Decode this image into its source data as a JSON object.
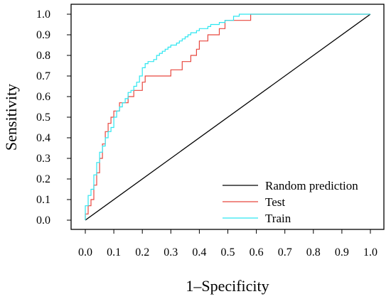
{
  "chart_data": {
    "type": "line",
    "title": "",
    "xlabel": "1–Specificity",
    "ylabel": "Sensitivity",
    "xlim": [
      0,
      1
    ],
    "ylim": [
      0,
      1
    ],
    "xticks": [
      "0.0",
      "0.1",
      "0.2",
      "0.3",
      "0.4",
      "0.5",
      "0.6",
      "0.7",
      "0.8",
      "0.9",
      "1.0"
    ],
    "yticks": [
      "0.0",
      "0.1",
      "0.2",
      "0.3",
      "0.4",
      "0.5",
      "0.6",
      "0.7",
      "0.8",
      "0.9",
      "1.0"
    ],
    "grid": false,
    "legend_position": "bottom-right",
    "series": [
      {
        "name": "Random prediction",
        "color": "#000000",
        "x": [
          0,
          1
        ],
        "y": [
          0,
          1
        ]
      },
      {
        "name": "Test",
        "color": "#e8473f",
        "x": [
          0.0,
          0.0,
          0.01,
          0.01,
          0.02,
          0.03,
          0.04,
          0.05,
          0.06,
          0.07,
          0.08,
          0.09,
          0.1,
          0.1,
          0.12,
          0.12,
          0.13,
          0.14,
          0.15,
          0.16,
          0.17,
          0.18,
          0.19,
          0.2,
          0.21,
          0.22,
          0.23,
          0.24,
          0.25,
          0.26,
          0.27,
          0.28,
          0.29,
          0.3,
          0.3,
          0.31,
          0.32,
          0.33,
          0.34,
          0.35,
          0.36,
          0.37,
          0.38,
          0.39,
          0.4,
          0.41,
          0.42,
          0.43,
          0.44,
          0.45,
          0.46,
          0.47,
          0.48,
          0.49,
          0.5,
          0.52,
          0.54,
          0.56,
          0.58,
          0.6,
          0.62,
          0.64,
          0.66,
          0.68,
          1.0
        ],
        "y": [
          0.0,
          0.03,
          0.03,
          0.07,
          0.1,
          0.17,
          0.23,
          0.3,
          0.37,
          0.43,
          0.47,
          0.5,
          0.53,
          0.53,
          0.53,
          0.57,
          0.57,
          0.57,
          0.6,
          0.6,
          0.63,
          0.63,
          0.63,
          0.67,
          0.7,
          0.7,
          0.7,
          0.7,
          0.7,
          0.7,
          0.7,
          0.7,
          0.7,
          0.7,
          0.73,
          0.73,
          0.73,
          0.73,
          0.77,
          0.77,
          0.77,
          0.8,
          0.8,
          0.83,
          0.87,
          0.87,
          0.87,
          0.9,
          0.9,
          0.9,
          0.9,
          0.93,
          0.93,
          0.97,
          0.97,
          0.97,
          0.97,
          0.97,
          1.0,
          1.0,
          1.0,
          1.0,
          1.0,
          1.0,
          1.0
        ]
      },
      {
        "name": "Train",
        "color": "#2ee6f0",
        "x": [
          0.0,
          0.0,
          0.01,
          0.02,
          0.03,
          0.04,
          0.05,
          0.06,
          0.07,
          0.08,
          0.09,
          0.1,
          0.11,
          0.12,
          0.13,
          0.14,
          0.15,
          0.16,
          0.17,
          0.18,
          0.19,
          0.2,
          0.21,
          0.22,
          0.23,
          0.24,
          0.25,
          0.26,
          0.27,
          0.28,
          0.29,
          0.3,
          0.31,
          0.32,
          0.33,
          0.34,
          0.35,
          0.36,
          0.37,
          0.38,
          0.39,
          0.4,
          0.41,
          0.42,
          0.43,
          0.44,
          0.45,
          0.46,
          0.47,
          0.48,
          0.49,
          0.5,
          0.52,
          0.54,
          0.56,
          0.58,
          0.6,
          0.62,
          0.64,
          0.66,
          0.68,
          1.0
        ],
        "y": [
          0.0,
          0.07,
          0.12,
          0.15,
          0.22,
          0.28,
          0.33,
          0.36,
          0.4,
          0.43,
          0.45,
          0.5,
          0.53,
          0.55,
          0.57,
          0.59,
          0.62,
          0.63,
          0.65,
          0.67,
          0.7,
          0.74,
          0.76,
          0.77,
          0.77,
          0.78,
          0.8,
          0.81,
          0.82,
          0.83,
          0.84,
          0.85,
          0.85,
          0.86,
          0.87,
          0.88,
          0.89,
          0.9,
          0.91,
          0.91,
          0.92,
          0.93,
          0.93,
          0.93,
          0.94,
          0.95,
          0.95,
          0.95,
          0.96,
          0.96,
          0.97,
          0.97,
          0.99,
          1.0,
          1.0,
          1.0,
          1.0,
          1.0,
          1.0,
          1.0,
          1.0,
          1.0
        ]
      }
    ]
  }
}
